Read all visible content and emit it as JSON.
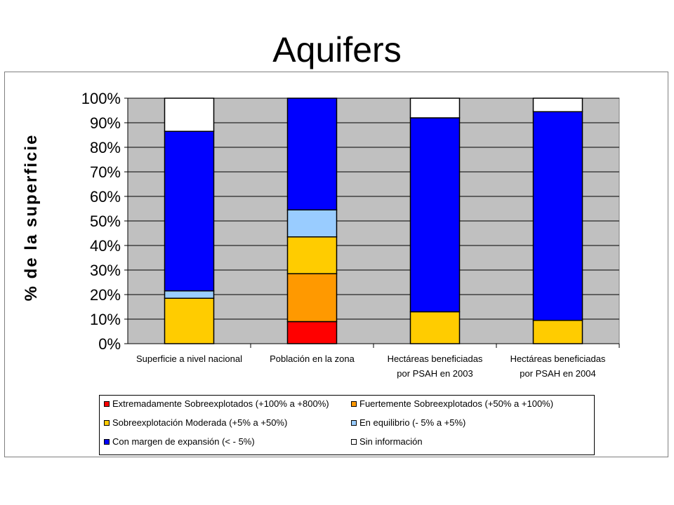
{
  "slide_title": "Aquifers",
  "chart_data": {
    "type": "bar",
    "stacked": true,
    "percent_stacked": true,
    "title": "",
    "xlabel": "",
    "ylabel": "% de la superficie",
    "ylim": [
      0,
      100
    ],
    "yticks": [
      "0%",
      "10%",
      "20%",
      "30%",
      "40%",
      "50%",
      "60%",
      "70%",
      "80%",
      "90%",
      "100%"
    ],
    "categories": [
      [
        "Superficie a nivel nacional"
      ],
      [
        "Población en la zona"
      ],
      [
        "Hectáreas beneficiadas",
        "por PSAH en 2003"
      ],
      [
        "Hectáreas beneficiadas",
        "por PSAH en 2004"
      ]
    ],
    "grid": true,
    "legend_position": "bottom",
    "series": [
      {
        "name": "Extremadamente Sobreexplotados (+100% a  +800%)",
        "color": "#ff0000",
        "values": [
          0,
          9,
          0,
          0
        ]
      },
      {
        "name": "Fuertemente Sobreexplotados (+50% a +100%)",
        "color": "#ff9900",
        "values": [
          0,
          19.5,
          0,
          0
        ]
      },
      {
        "name": "Sobreexplotación Moderada (+5% a +50%)",
        "color": "#ffcc00",
        "values": [
          18.5,
          15,
          13,
          9.5
        ]
      },
      {
        "name": "En equilibrio (- 5%  a  +5%)",
        "color": "#99ccff",
        "values": [
          3,
          11,
          0,
          0
        ]
      },
      {
        "name": "Con margen de expansión (< - 5%)",
        "color": "#0000ff",
        "values": [
          65,
          45.5,
          79,
          85
        ]
      },
      {
        "name": "Sin información",
        "color": "#ffffff",
        "values": [
          13.5,
          0,
          8,
          5.5
        ]
      }
    ]
  }
}
